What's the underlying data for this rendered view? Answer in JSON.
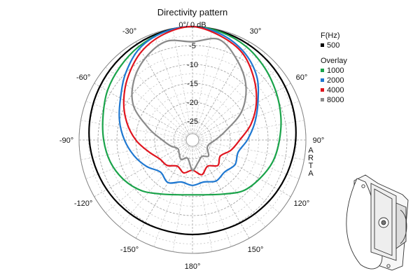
{
  "chart_data": {
    "type": "polar-line",
    "title": "Directivity pattern",
    "zero_label": "0°/ 0 dB",
    "watermark": [
      "A",
      "R",
      "T",
      "A"
    ],
    "angular_axis": {
      "tick_labels": [
        {
          "deg": -30,
          "label": "-30°"
        },
        {
          "deg": 30,
          "label": "30°"
        },
        {
          "deg": -60,
          "label": "-60°"
        },
        {
          "deg": 60,
          "label": "60°"
        },
        {
          "deg": -90,
          "label": "-90°"
        },
        {
          "deg": 90,
          "label": "90°"
        },
        {
          "deg": -120,
          "label": "-120°"
        },
        {
          "deg": 120,
          "label": "120°"
        },
        {
          "deg": -150,
          "label": "-150°"
        },
        {
          "deg": 150,
          "label": "150°"
        },
        {
          "deg": 180,
          "label": "180°"
        }
      ]
    },
    "radial_axis": {
      "unit": "dB",
      "range": [
        -30,
        0
      ],
      "tick_labels": [
        {
          "db": -5,
          "label": "-5"
        },
        {
          "db": -10,
          "label": "-10"
        },
        {
          "db": -15,
          "label": "-15"
        },
        {
          "db": -20,
          "label": "-20"
        },
        {
          "db": -25,
          "label": "-25"
        }
      ],
      "grid": true
    },
    "legend": {
      "header": "F(Hz)",
      "overlay_header": "Overlay",
      "placement": "right",
      "entries": [
        {
          "label": "500",
          "color": "#000000"
        },
        {
          "label": "1000",
          "color": "#1aa34a"
        },
        {
          "label": "2000",
          "color": "#1f78d1"
        },
        {
          "label": "4000",
          "color": "#e0141e"
        },
        {
          "label": "8000",
          "color": "#8a8a8a"
        }
      ]
    },
    "series": [
      {
        "name": "500",
        "color": "#000000",
        "angles": [
          0,
          15,
          30,
          45,
          60,
          75,
          90,
          105,
          120,
          135,
          150,
          165,
          180,
          195,
          210,
          225,
          240,
          255,
          270,
          285,
          300,
          315,
          330,
          345
        ],
        "values": [
          0,
          -0.3,
          -0.7,
          -1.2,
          -1.7,
          -2.2,
          -2.7,
          -3.3,
          -3.8,
          -4.3,
          -4.7,
          -5.0,
          -5.0,
          -5.0,
          -4.7,
          -4.3,
          -3.8,
          -3.3,
          -2.7,
          -2.2,
          -1.7,
          -1.2,
          -0.7,
          -0.3
        ]
      },
      {
        "name": "1000",
        "color": "#1aa34a",
        "angles": [
          0,
          15,
          30,
          45,
          60,
          75,
          90,
          105,
          120,
          135,
          150,
          165,
          180,
          195,
          210,
          225,
          240,
          255,
          270,
          285,
          300,
          315,
          330,
          345
        ],
        "values": [
          0,
          -0.5,
          -1.5,
          -3,
          -4.5,
          -5.8,
          -7,
          -8,
          -9.5,
          -11,
          -13.5,
          -15,
          -15.5,
          -15,
          -13.5,
          -11,
          -9,
          -7.5,
          -6.5,
          -5.5,
          -4,
          -2.8,
          -1.5,
          -0.5
        ]
      },
      {
        "name": "2000",
        "color": "#1f78d1",
        "angles": [
          0,
          15,
          30,
          45,
          60,
          75,
          90,
          105,
          120,
          135,
          150,
          165,
          180,
          195,
          210,
          225,
          240,
          255,
          270,
          285,
          300,
          315,
          330,
          345
        ],
        "values": [
          0,
          -1,
          -3,
          -6,
          -10,
          -13,
          -15.5,
          -17.5,
          -17,
          -18,
          -17.5,
          -18.5,
          -18,
          -18.5,
          -17,
          -18,
          -16,
          -14,
          -12,
          -10,
          -8,
          -5,
          -2,
          -0.5
        ]
      },
      {
        "name": "4000",
        "color": "#e0141e",
        "angles": [
          0,
          15,
          30,
          45,
          60,
          75,
          90,
          105,
          120,
          135,
          150,
          165,
          180,
          195,
          210,
          225,
          240,
          255,
          270,
          285,
          300,
          315,
          330,
          345
        ],
        "values": [
          0,
          -1.5,
          -3.5,
          -7,
          -10.5,
          -14,
          -17.5,
          -19.5,
          -21.5,
          -20.5,
          -22,
          -20.5,
          -22,
          -21,
          -22,
          -20.5,
          -20,
          -18,
          -15,
          -12,
          -9,
          -6,
          -3,
          -1
        ]
      },
      {
        "name": "8000",
        "color": "#8a8a8a",
        "angles": [
          0,
          15,
          30,
          45,
          60,
          75,
          90,
          105,
          120,
          135,
          150,
          165,
          180,
          195,
          210,
          225,
          240,
          255,
          270,
          285,
          300,
          315,
          330,
          345
        ],
        "values": [
          -4,
          -2.5,
          -6,
          -10,
          -15,
          -21,
          -24,
          -25.5,
          -25.5,
          -24,
          -25,
          -24,
          -22,
          -25,
          -24,
          -25,
          -25.5,
          -24,
          -22,
          -18,
          -12,
          -8,
          -5,
          -3
        ]
      }
    ]
  }
}
